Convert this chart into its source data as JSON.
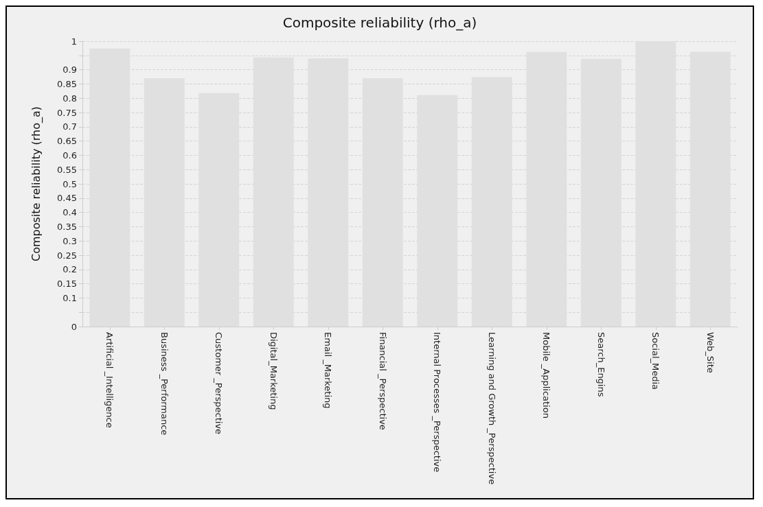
{
  "chart_data": {
    "type": "bar",
    "title": "Composite reliability (rho_a)",
    "ylabel": "Composite reliability (rho_a)",
    "categories": [
      "Artificial _Intelligence",
      "Business _Performance",
      "Customer _Perspective",
      "Digital_Marketing",
      "Email _Marketing",
      "Financial _Perspective",
      "Internal Processes _Perspective",
      "Learning and Growth _Perspective",
      "Mobile _Application",
      "Search_Engins",
      "Social_Media",
      "Web_Site"
    ],
    "values": [
      0.974,
      0.87,
      0.818,
      0.943,
      0.94,
      0.87,
      0.811,
      0.874,
      0.962,
      0.938,
      1.0,
      0.963
    ],
    "color": "#e0e0e0",
    "ylim": [
      0,
      1
    ],
    "yticks": [
      0,
      {
        "value": 0.05,
        "label": null
      },
      0.1,
      0.15,
      0.2,
      0.25,
      0.3,
      0.35,
      0.4,
      0.45,
      0.5,
      0.55,
      0.6,
      0.65,
      0.7,
      0.75,
      0.8,
      0.85,
      0.9,
      {
        "value": 0.95,
        "label": null
      },
      1
    ],
    "grid": "y"
  }
}
